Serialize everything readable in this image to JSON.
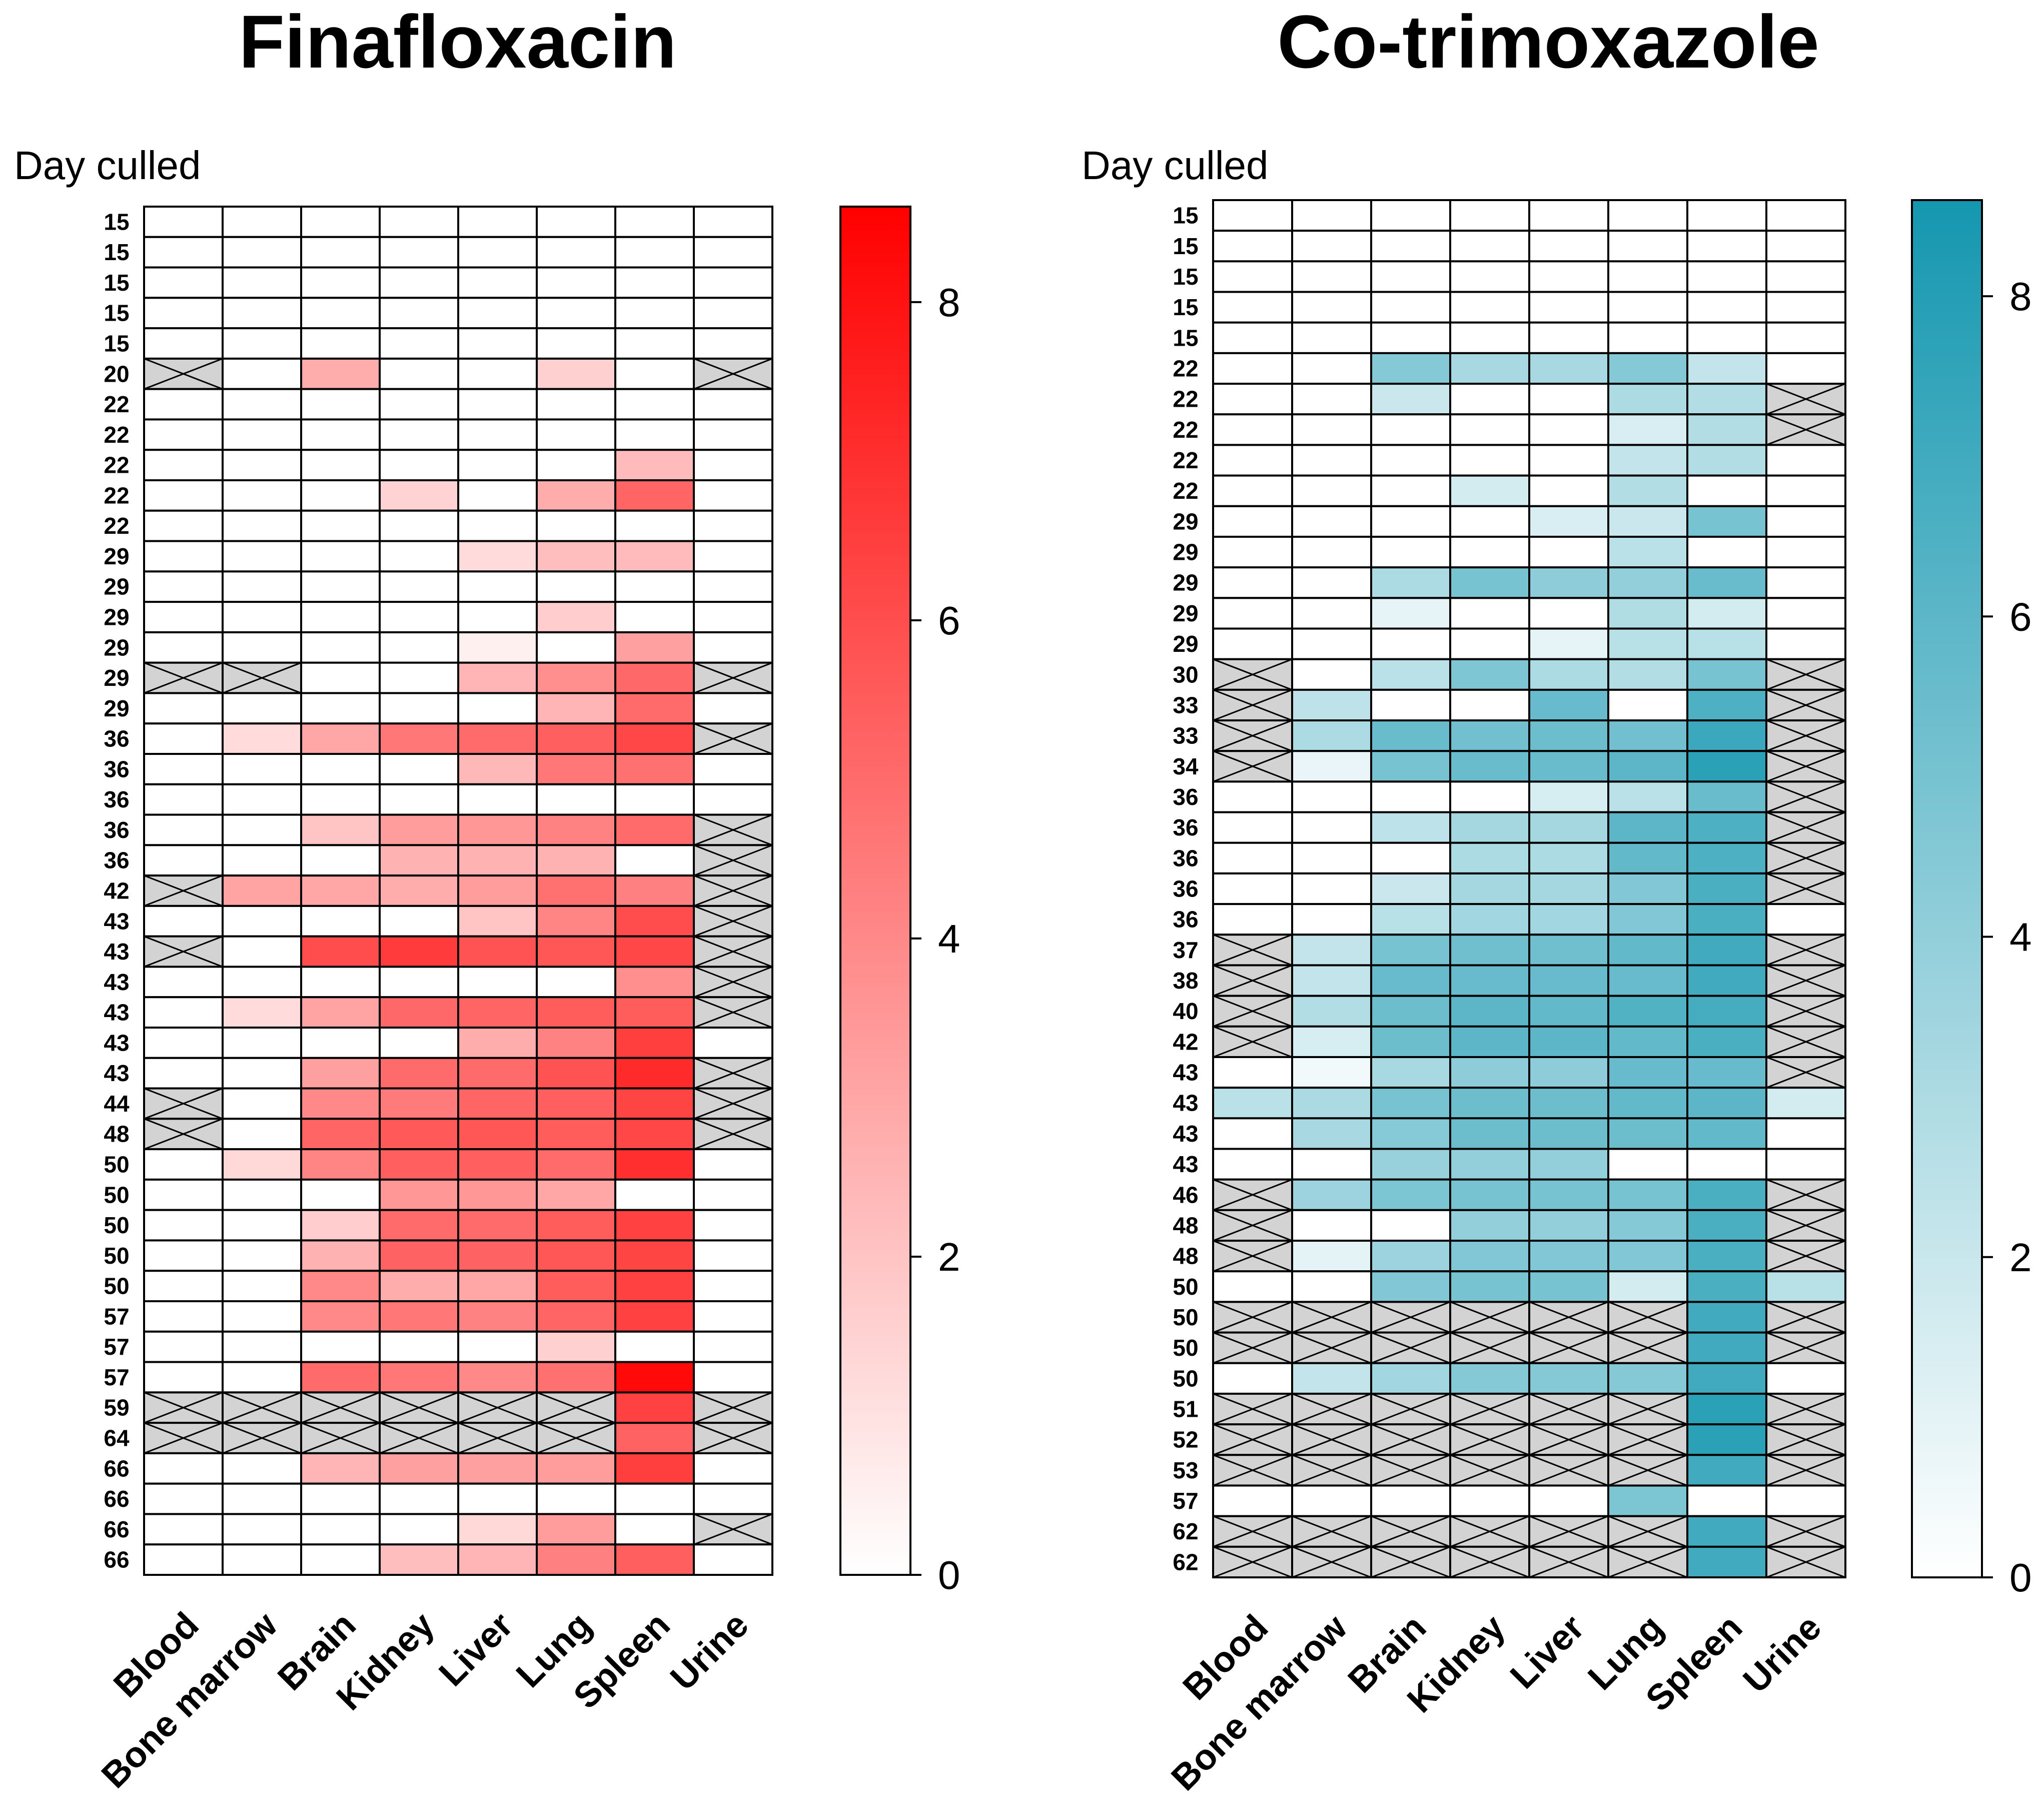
{
  "chart_data": [
    {
      "type": "heatmap",
      "title": "Finafloxacin",
      "ylabel": "Day culled",
      "columns": [
        "Blood",
        "Bone marrow",
        "Brain",
        "Kidney",
        "Liver",
        "Lung",
        "Spleen",
        "Urine"
      ],
      "rows": [
        "15",
        "15",
        "15",
        "15",
        "15",
        "20",
        "22",
        "22",
        "22",
        "22",
        "22",
        "29",
        "29",
        "29",
        "29",
        "29",
        "29",
        "36",
        "36",
        "36",
        "36",
        "36",
        "42",
        "43",
        "43",
        "43",
        "43",
        "43",
        "43",
        "44",
        "48",
        "50",
        "50",
        "50",
        "50",
        "50",
        "57",
        "57",
        "57",
        "59",
        "64",
        "66",
        "66",
        "66",
        "66"
      ],
      "values": [
        [
          0,
          0,
          0,
          0,
          0,
          0,
          0,
          0
        ],
        [
          0,
          0,
          0,
          0,
          0,
          0,
          0,
          0
        ],
        [
          0,
          0,
          0,
          0,
          0,
          0,
          0,
          0
        ],
        [
          0,
          0,
          0,
          0,
          0,
          0,
          0,
          0
        ],
        [
          0,
          0,
          0,
          0,
          0,
          0,
          0,
          0
        ],
        [
          null,
          0,
          2.8,
          0,
          0,
          1.6,
          0,
          null
        ],
        [
          0,
          0,
          0,
          0,
          0,
          0,
          0,
          0
        ],
        [
          0,
          0,
          0,
          0,
          0,
          0,
          0,
          0
        ],
        [
          0,
          0,
          0,
          0,
          0,
          0,
          2.3,
          0
        ],
        [
          0,
          0,
          0,
          1.5,
          0,
          2.8,
          5.2,
          0
        ],
        [
          0,
          0,
          0,
          0,
          0,
          0,
          0,
          0
        ],
        [
          0,
          0,
          0,
          0,
          1.2,
          2.2,
          2.3,
          0
        ],
        [
          0,
          0,
          0,
          0,
          0,
          0,
          0,
          0
        ],
        [
          0,
          0,
          0,
          0,
          0,
          1.7,
          0,
          0
        ],
        [
          0,
          0,
          0,
          0,
          0.5,
          0,
          3.2,
          0
        ],
        [
          null,
          null,
          0,
          0,
          2.5,
          3.8,
          5.1,
          null
        ],
        [
          0,
          0,
          0,
          0,
          0,
          2.5,
          5.0,
          0
        ],
        [
          0,
          1.2,
          3.0,
          4.6,
          5.0,
          5.4,
          6.2,
          null
        ],
        [
          0,
          0,
          0,
          0,
          2.4,
          4.6,
          4.8,
          0
        ],
        [
          0,
          0,
          0,
          0,
          0,
          0,
          0,
          0
        ],
        [
          0,
          0,
          2.0,
          3.3,
          3.5,
          4.2,
          5.0,
          null
        ],
        [
          0,
          0,
          0,
          2.6,
          2.6,
          2.6,
          0,
          null
        ],
        [
          null,
          3.1,
          3.0,
          2.8,
          3.3,
          4.8,
          4.3,
          null
        ],
        [
          0,
          0,
          0,
          0,
          2.0,
          4.1,
          6.0,
          null
        ],
        [
          null,
          0,
          6.0,
          6.6,
          5.8,
          5.7,
          6.2,
          null
        ],
        [
          0,
          0,
          0,
          0,
          0,
          0,
          3.8,
          null
        ],
        [
          0,
          1.2,
          3.1,
          5.1,
          5.2,
          5.5,
          5.5,
          null
        ],
        [
          0,
          0,
          0,
          0,
          2.8,
          4.2,
          6.5,
          0
        ],
        [
          0,
          0,
          3.2,
          5.0,
          5.0,
          5.8,
          7.2,
          null
        ],
        [
          null,
          0,
          4.0,
          4.5,
          5.2,
          5.4,
          6.3,
          null
        ],
        [
          null,
          0,
          5.2,
          5.6,
          5.7,
          5.5,
          6.2,
          null
        ],
        [
          0,
          1.3,
          4.1,
          5.4,
          5.4,
          5.0,
          7.0,
          0
        ],
        [
          0,
          0,
          0,
          3.5,
          3.5,
          3.0,
          0,
          0
        ],
        [
          0,
          0,
          1.7,
          5.0,
          5.0,
          5.5,
          6.4,
          0
        ],
        [
          0,
          0,
          2.6,
          5.3,
          5.3,
          5.7,
          6.3,
          0
        ],
        [
          0,
          0,
          4.0,
          2.8,
          3.0,
          5.5,
          6.4,
          0
        ],
        [
          0,
          0,
          4.0,
          4.6,
          4.2,
          5.2,
          6.4,
          0
        ],
        [
          0,
          0,
          0,
          0,
          0,
          1.6,
          0,
          0
        ],
        [
          0,
          0,
          5.0,
          4.6,
          4.0,
          4.8,
          8.3,
          0
        ],
        [
          null,
          null,
          null,
          null,
          null,
          null,
          6.4,
          null
        ],
        [
          null,
          null,
          null,
          null,
          null,
          null,
          5.3,
          null
        ],
        [
          0,
          0,
          2.5,
          3.2,
          3.2,
          3.3,
          6.5,
          0
        ],
        [
          0,
          0,
          0,
          0,
          0,
          0,
          0,
          0
        ],
        [
          0,
          0,
          0,
          0,
          1.3,
          3.3,
          0,
          null
        ],
        [
          0,
          0,
          0,
          2.2,
          2.5,
          4.3,
          5.4,
          0
        ]
      ],
      "colorbar": {
        "min": 0,
        "max": 8.6,
        "ticks": [
          "0",
          "2",
          "4",
          "6",
          "8"
        ],
        "color_low": "#ffffff",
        "color_high": "#ff0000"
      },
      "missing_color": "#d3d3d3"
    },
    {
      "type": "heatmap",
      "title": "Co-trimoxazole",
      "ylabel": "Day culled",
      "columns": [
        "Blood",
        "Bone marrow",
        "Brain",
        "Kidney",
        "Liver",
        "Lung",
        "Spleen",
        "Urine"
      ],
      "rows": [
        "15",
        "15",
        "15",
        "15",
        "15",
        "22",
        "22",
        "22",
        "22",
        "22",
        "29",
        "29",
        "29",
        "29",
        "29",
        "30",
        "33",
        "33",
        "34",
        "36",
        "36",
        "36",
        "36",
        "36",
        "37",
        "38",
        "40",
        "42",
        "43",
        "43",
        "43",
        "43",
        "46",
        "48",
        "48",
        "50",
        "50",
        "50",
        "50",
        "51",
        "52",
        "53",
        "57",
        "62",
        "62"
      ],
      "values": [
        [
          0,
          0,
          0,
          0,
          0,
          0,
          0,
          0
        ],
        [
          0,
          0,
          0,
          0,
          0,
          0,
          0,
          0
        ],
        [
          0,
          0,
          0,
          0,
          0,
          0,
          0,
          0
        ],
        [
          0,
          0,
          0,
          0,
          0,
          0,
          0,
          0
        ],
        [
          0,
          0,
          0,
          0,
          0,
          0,
          0,
          0
        ],
        [
          0,
          0,
          4.5,
          3.2,
          3.2,
          4.5,
          2.2,
          0
        ],
        [
          0,
          0,
          2.0,
          0,
          0,
          3.0,
          2.8,
          null
        ],
        [
          0,
          0,
          0,
          0,
          0,
          1.4,
          2.8,
          null
        ],
        [
          0,
          0,
          0,
          0,
          0,
          2.2,
          2.8,
          0
        ],
        [
          0,
          0,
          0,
          1.6,
          0,
          2.8,
          0,
          0
        ],
        [
          0,
          0,
          0,
          0,
          1.4,
          2.0,
          5.0,
          0
        ],
        [
          0,
          0,
          0,
          0,
          0,
          2.5,
          0,
          0
        ],
        [
          0,
          0,
          3.0,
          5.0,
          4.2,
          4.0,
          5.5,
          0
        ],
        [
          0,
          0,
          0.9,
          0,
          0,
          2.9,
          1.6,
          0
        ],
        [
          0,
          0,
          0,
          0,
          0.9,
          2.6,
          2.6,
          0
        ],
        [
          null,
          0,
          2.5,
          4.7,
          3.0,
          2.8,
          5.0,
          null
        ],
        [
          null,
          2.4,
          0,
          0,
          5.6,
          0,
          6.5,
          null
        ],
        [
          null,
          3.0,
          5.5,
          5.2,
          5.4,
          5.2,
          7.2,
          null
        ],
        [
          null,
          0.8,
          5.0,
          5.5,
          5.5,
          6.0,
          7.8,
          null
        ],
        [
          0,
          0,
          0,
          0,
          1.5,
          2.5,
          5.5,
          null
        ],
        [
          0,
          0,
          2.4,
          3.3,
          3.3,
          6.0,
          6.5,
          null
        ],
        [
          0,
          0,
          0,
          3.0,
          3.0,
          5.8,
          6.5,
          null
        ],
        [
          0,
          0,
          2.0,
          3.3,
          3.3,
          4.6,
          6.6,
          null
        ],
        [
          0,
          0,
          2.6,
          3.4,
          3.4,
          4.6,
          6.6,
          0
        ],
        [
          null,
          2.2,
          5.0,
          5.3,
          5.3,
          5.8,
          7.0,
          null
        ],
        [
          null,
          2.2,
          5.6,
          5.6,
          5.6,
          5.6,
          7.0,
          null
        ],
        [
          null,
          2.8,
          5.4,
          6.0,
          5.8,
          6.4,
          6.8,
          null
        ],
        [
          null,
          1.5,
          5.4,
          6.0,
          6.0,
          5.8,
          6.6,
          null
        ],
        [
          0,
          0.5,
          3.2,
          4.2,
          4.2,
          5.6,
          5.6,
          null
        ],
        [
          2.5,
          3.1,
          5.0,
          5.4,
          5.4,
          5.8,
          6.0,
          1.6
        ],
        [
          0,
          3.2,
          4.4,
          5.4,
          5.4,
          5.4,
          5.8,
          0
        ],
        [
          0,
          0,
          3.8,
          4.0,
          4.0,
          0,
          0,
          0
        ],
        [
          null,
          3.6,
          4.8,
          5.0,
          5.0,
          5.0,
          6.6,
          null
        ],
        [
          null,
          0,
          0,
          4.0,
          4.0,
          4.5,
          6.6,
          null
        ],
        [
          null,
          1.0,
          3.6,
          4.6,
          4.6,
          4.6,
          6.6,
          null
        ],
        [
          0,
          0,
          4.6,
          5.0,
          5.0,
          1.6,
          6.6,
          2.6
        ],
        [
          null,
          null,
          null,
          null,
          null,
          null,
          7.0,
          null
        ],
        [
          null,
          null,
          null,
          null,
          null,
          null,
          7.0,
          null
        ],
        [
          0,
          2.2,
          3.4,
          4.5,
          4.5,
          4.5,
          7.0,
          0
        ],
        [
          null,
          null,
          null,
          null,
          null,
          null,
          7.8,
          null
        ],
        [
          null,
          null,
          null,
          null,
          null,
          null,
          7.8,
          null
        ],
        [
          null,
          null,
          null,
          null,
          null,
          null,
          7.0,
          null
        ],
        [
          0,
          0,
          0,
          0,
          0,
          4.8,
          0,
          0
        ],
        [
          null,
          null,
          null,
          null,
          null,
          null,
          7.0,
          null
        ],
        [
          null,
          null,
          null,
          null,
          null,
          null,
          7.0,
          null
        ]
      ],
      "colorbar": {
        "min": 0,
        "max": 8.6,
        "ticks": [
          "0",
          "2",
          "4",
          "6",
          "8"
        ],
        "color_low": "#ffffff",
        "color_high": "#1597b0"
      },
      "missing_color": "#d3d3d3"
    }
  ]
}
